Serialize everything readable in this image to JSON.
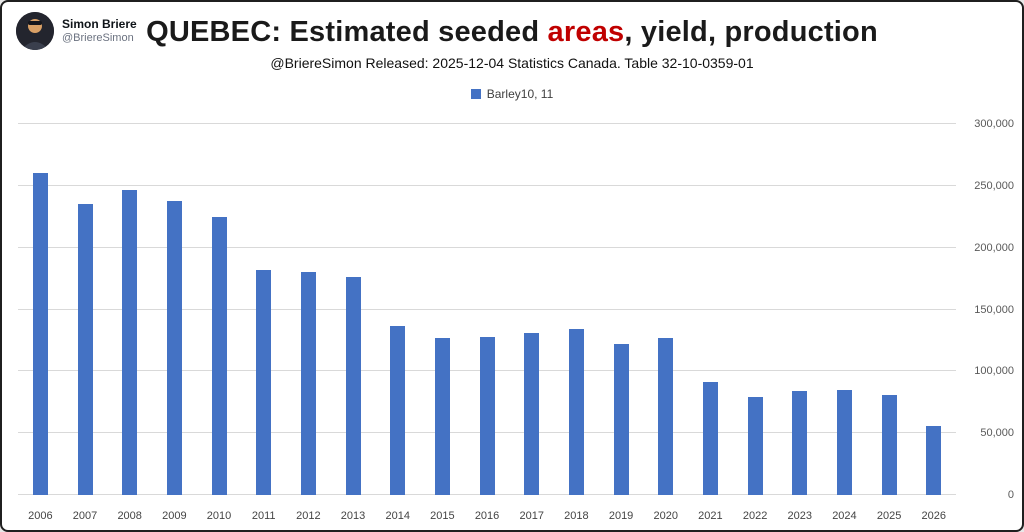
{
  "header": {
    "name": "Simon Briere",
    "handle": "@BriereSimon"
  },
  "title": {
    "prefix": "QUEBEC: Estimated seeded ",
    "highlight": "areas",
    "suffix": ", yield, production"
  },
  "subtitle": "@BriereSimon Released:  2025-12-04 Statistics Canada. Table 32-10-0359-01",
  "legend": {
    "label": "Barley10, 11",
    "color": "#4472C4"
  },
  "colors": {
    "bar": "#4472C4",
    "title_highlight": "#C00000",
    "gridline": "#D9D9D9"
  },
  "chart_data": {
    "type": "bar",
    "title": "QUEBEC: Estimated seeded areas, yield, production",
    "series_name": "Barley10, 11",
    "categories": [
      "2006",
      "2007",
      "2008",
      "2009",
      "2010",
      "2011",
      "2012",
      "2013",
      "2014",
      "2015",
      "2016",
      "2017",
      "2018",
      "2019",
      "2020",
      "2021",
      "2022",
      "2023",
      "2024",
      "2025",
      "2026"
    ],
    "values": [
      260000,
      235000,
      247000,
      238000,
      225000,
      182000,
      180000,
      176000,
      137000,
      127000,
      128000,
      131000,
      134000,
      122000,
      127000,
      91000,
      79000,
      84000,
      85000,
      81000,
      56000
    ],
    "xlabel": "",
    "ylabel": "",
    "ylim": [
      0,
      300000
    ],
    "ytick_step": 50000,
    "grid": true,
    "y_axis_side": "right",
    "legend_position": "top",
    "bar_color": "#4472C4"
  }
}
